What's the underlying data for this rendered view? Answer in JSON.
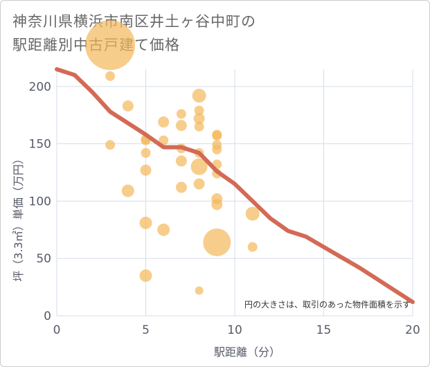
{
  "title": {
    "line1": "神奈川県横浜市南区井土ヶ谷中町の",
    "line2": "駅距離別中古戸建て価格"
  },
  "note": "円の大きさは、取引のあった物件面積を示す",
  "colors": {
    "bubble": "#f3b85a",
    "trend": "#d36a55",
    "grid": "#d5dde8",
    "text": "#555a66"
  },
  "chart_data": {
    "type": "scatter",
    "title": "神奈川県横浜市南区井土ヶ谷中町の駅距離別中古戸建て価格",
    "xlabel": "駅距離（分）",
    "ylabel": "坪（3.3㎡）単価（万円）",
    "xlim": [
      0,
      20
    ],
    "ylim": [
      0,
      215
    ],
    "x_ticks": [
      "0",
      "5",
      "10",
      "15",
      "20"
    ],
    "y_ticks": [
      "0",
      "50",
      "100",
      "150",
      "200"
    ],
    "grid": true,
    "bubbles": [
      {
        "x": 3,
        "y": 236,
        "size": 36
      },
      {
        "x": 3,
        "y": 209,
        "size": 7
      },
      {
        "x": 3,
        "y": 149,
        "size": 7
      },
      {
        "x": 4,
        "y": 183,
        "size": 8
      },
      {
        "x": 4,
        "y": 109,
        "size": 9
      },
      {
        "x": 5,
        "y": 154,
        "size": 7
      },
      {
        "x": 5,
        "y": 153,
        "size": 7
      },
      {
        "x": 5,
        "y": 142,
        "size": 7
      },
      {
        "x": 5,
        "y": 127,
        "size": 8
      },
      {
        "x": 5,
        "y": 81,
        "size": 9
      },
      {
        "x": 5,
        "y": 35,
        "size": 9
      },
      {
        "x": 6,
        "y": 169,
        "size": 8
      },
      {
        "x": 6,
        "y": 153,
        "size": 7
      },
      {
        "x": 6,
        "y": 75,
        "size": 9
      },
      {
        "x": 7,
        "y": 176,
        "size": 7
      },
      {
        "x": 7,
        "y": 166,
        "size": 8
      },
      {
        "x": 7,
        "y": 146,
        "size": 7
      },
      {
        "x": 7,
        "y": 135,
        "size": 8
      },
      {
        "x": 7,
        "y": 112,
        "size": 8
      },
      {
        "x": 8,
        "y": 192,
        "size": 10
      },
      {
        "x": 8,
        "y": 179,
        "size": 7
      },
      {
        "x": 8,
        "y": 172,
        "size": 8
      },
      {
        "x": 8,
        "y": 165,
        "size": 7
      },
      {
        "x": 8,
        "y": 142,
        "size": 7
      },
      {
        "x": 8,
        "y": 130,
        "size": 12
      },
      {
        "x": 8,
        "y": 115,
        "size": 8
      },
      {
        "x": 8,
        "y": 22,
        "size": 6
      },
      {
        "x": 9,
        "y": 158,
        "size": 7
      },
      {
        "x": 9,
        "y": 157,
        "size": 7
      },
      {
        "x": 9,
        "y": 149,
        "size": 7
      },
      {
        "x": 9,
        "y": 145,
        "size": 7
      },
      {
        "x": 9,
        "y": 132,
        "size": 7
      },
      {
        "x": 9,
        "y": 124,
        "size": 7
      },
      {
        "x": 9,
        "y": 102,
        "size": 8
      },
      {
        "x": 9,
        "y": 97,
        "size": 8
      },
      {
        "x": 9,
        "y": 64,
        "size": 20
      },
      {
        "x": 11,
        "y": 89,
        "size": 10
      },
      {
        "x": 11,
        "y": 60,
        "size": 7
      }
    ],
    "series": [
      {
        "x": [
          0,
          1,
          2,
          3,
          4,
          5,
          6,
          7,
          8,
          9,
          10,
          11,
          12,
          13,
          14,
          15,
          16,
          17,
          18,
          19,
          20
        ],
        "values": [
          215,
          210,
          195,
          178,
          168,
          158,
          147,
          147,
          142,
          126,
          115,
          100,
          85,
          74,
          69,
          60,
          51,
          42,
          32,
          22,
          12
        ]
      }
    ]
  }
}
